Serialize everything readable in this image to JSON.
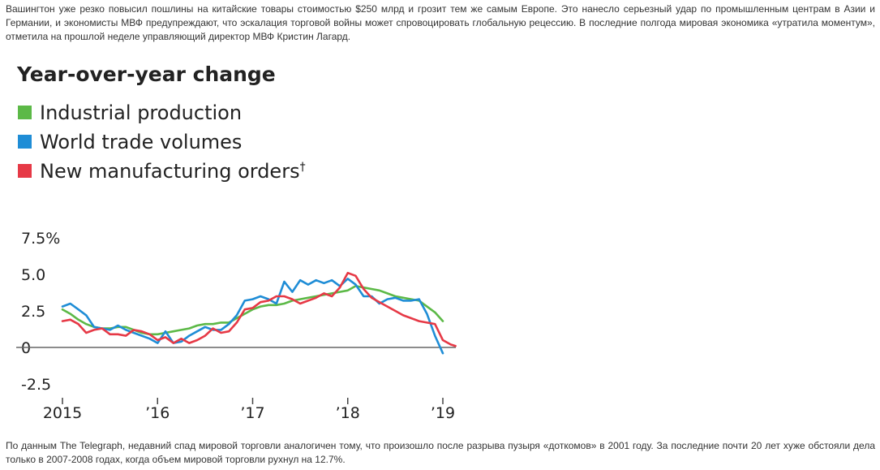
{
  "article": {
    "paragraph_top": "Вашингтон уже резко повысил пошлины на китайские товары стоимостью $250 млрд и грозит тем же самым Европе. Это нанесло серьезный удар по промышленным центрам в Азии и Германии, и экономисты МВФ предупреждают, что эскалация торговой войны может спровоцировать глобальную рецессию. В последние полгода мировая экономика «утратила моментум», отметила на прошлой неделе управляющий директор МВФ Кристин Лагард.",
    "paragraph_bottom": "По данным The Telegraph, недавний спад мировой торговли аналогичен тому, что произошло после разрыва пузыря «доткомов» в 2001 году. За последние почти 20 лет хуже обстояли дела только в 2007-2008 годах, когда объем мировой торговли рухнул на 12.7%."
  },
  "chart_data": {
    "type": "line",
    "title": "Year-over-year change",
    "xlabel": "",
    "ylabel": "",
    "ylim": [
      -2.5,
      7.5
    ],
    "xlim": [
      2015,
      2019.15
    ],
    "ytick_labels": [
      {
        "value": 7.5,
        "label": "7.5%"
      },
      {
        "value": 5.0,
        "label": "5.0"
      },
      {
        "value": 2.5,
        "label": "2.5"
      },
      {
        "value": 0,
        "label": "0"
      },
      {
        "value": -2.5,
        "label": "-2.5"
      }
    ],
    "xtick_labels": [
      {
        "value": 2015,
        "label": "2015"
      },
      {
        "value": 2016,
        "label": "’16"
      },
      {
        "value": 2017,
        "label": "’17"
      },
      {
        "value": 2018,
        "label": "’18"
      },
      {
        "value": 2019,
        "label": "’19"
      }
    ],
    "series": [
      {
        "name": "Industrial production",
        "color": "#5cb947",
        "x": [
          2015.0,
          2015.083,
          2015.167,
          2015.25,
          2015.333,
          2015.417,
          2015.5,
          2015.583,
          2015.667,
          2015.75,
          2015.833,
          2015.917,
          2016.0,
          2016.083,
          2016.167,
          2016.25,
          2016.333,
          2016.417,
          2016.5,
          2016.583,
          2016.667,
          2016.75,
          2016.833,
          2016.917,
          2017.0,
          2017.083,
          2017.167,
          2017.25,
          2017.333,
          2017.417,
          2017.5,
          2017.583,
          2017.667,
          2017.75,
          2017.833,
          2017.917,
          2018.0,
          2018.083,
          2018.167,
          2018.25,
          2018.333,
          2018.417,
          2018.5,
          2018.583,
          2018.667,
          2018.75,
          2018.833,
          2018.917,
          2019.0
        ],
        "values": [
          2.6,
          2.3,
          1.9,
          1.6,
          1.4,
          1.3,
          1.3,
          1.4,
          1.4,
          1.2,
          1.0,
          0.9,
          0.9,
          1.0,
          1.1,
          1.2,
          1.3,
          1.5,
          1.6,
          1.6,
          1.7,
          1.7,
          2.0,
          2.3,
          2.6,
          2.8,
          2.9,
          2.9,
          3.0,
          3.2,
          3.3,
          3.4,
          3.5,
          3.6,
          3.7,
          3.8,
          3.9,
          4.2,
          4.1,
          4.0,
          3.9,
          3.7,
          3.5,
          3.4,
          3.3,
          3.2,
          2.8,
          2.4,
          1.8
        ]
      },
      {
        "name": "World trade volumes",
        "color": "#1f8dd6",
        "x": [
          2015.0,
          2015.083,
          2015.167,
          2015.25,
          2015.333,
          2015.417,
          2015.5,
          2015.583,
          2015.667,
          2015.75,
          2015.833,
          2015.917,
          2016.0,
          2016.083,
          2016.167,
          2016.25,
          2016.333,
          2016.417,
          2016.5,
          2016.583,
          2016.667,
          2016.75,
          2016.833,
          2016.917,
          2017.0,
          2017.083,
          2017.167,
          2017.25,
          2017.333,
          2017.417,
          2017.5,
          2017.583,
          2017.667,
          2017.75,
          2017.833,
          2017.917,
          2018.0,
          2018.083,
          2018.167,
          2018.25,
          2018.333,
          2018.417,
          2018.5,
          2018.583,
          2018.667,
          2018.75,
          2018.833,
          2018.917,
          2019.0
        ],
        "values": [
          2.8,
          3.0,
          2.6,
          2.2,
          1.4,
          1.3,
          1.2,
          1.5,
          1.2,
          1.0,
          0.8,
          0.6,
          0.3,
          1.1,
          0.3,
          0.4,
          0.8,
          1.1,
          1.4,
          1.2,
          1.2,
          1.6,
          2.2,
          3.2,
          3.3,
          3.5,
          3.3,
          3.0,
          4.5,
          3.8,
          4.6,
          4.3,
          4.6,
          4.4,
          4.6,
          4.2,
          4.7,
          4.3,
          3.5,
          3.5,
          3.0,
          3.3,
          3.4,
          3.2,
          3.2,
          3.3,
          2.3,
          0.8,
          -0.4
        ]
      },
      {
        "name": "New manufacturing orders",
        "color": "#e63946",
        "legend_suffix": "†",
        "x": [
          2015.0,
          2015.083,
          2015.167,
          2015.25,
          2015.333,
          2015.417,
          2015.5,
          2015.583,
          2015.667,
          2015.75,
          2015.833,
          2015.917,
          2016.0,
          2016.083,
          2016.167,
          2016.25,
          2016.333,
          2016.417,
          2016.5,
          2016.583,
          2016.667,
          2016.75,
          2016.833,
          2016.917,
          2017.0,
          2017.083,
          2017.167,
          2017.25,
          2017.333,
          2017.417,
          2017.5,
          2017.583,
          2017.667,
          2017.75,
          2017.833,
          2017.917,
          2018.0,
          2018.083,
          2018.167,
          2018.25,
          2018.333,
          2018.417,
          2018.5,
          2018.583,
          2018.667,
          2018.75,
          2018.833,
          2018.917,
          2019.0,
          2019.083,
          2019.133
        ],
        "values": [
          1.8,
          1.9,
          1.6,
          1.0,
          1.2,
          1.3,
          0.9,
          0.9,
          0.8,
          1.2,
          1.1,
          0.9,
          0.5,
          0.7,
          0.3,
          0.6,
          0.3,
          0.5,
          0.8,
          1.3,
          1.0,
          1.1,
          1.7,
          2.6,
          2.7,
          3.1,
          3.2,
          3.5,
          3.5,
          3.3,
          3.0,
          3.2,
          3.4,
          3.7,
          3.5,
          4.1,
          5.1,
          4.9,
          4.0,
          3.4,
          3.1,
          2.8,
          2.5,
          2.2,
          2.0,
          1.8,
          1.7,
          1.6,
          0.5,
          0.2,
          0.1
        ]
      }
    ]
  }
}
